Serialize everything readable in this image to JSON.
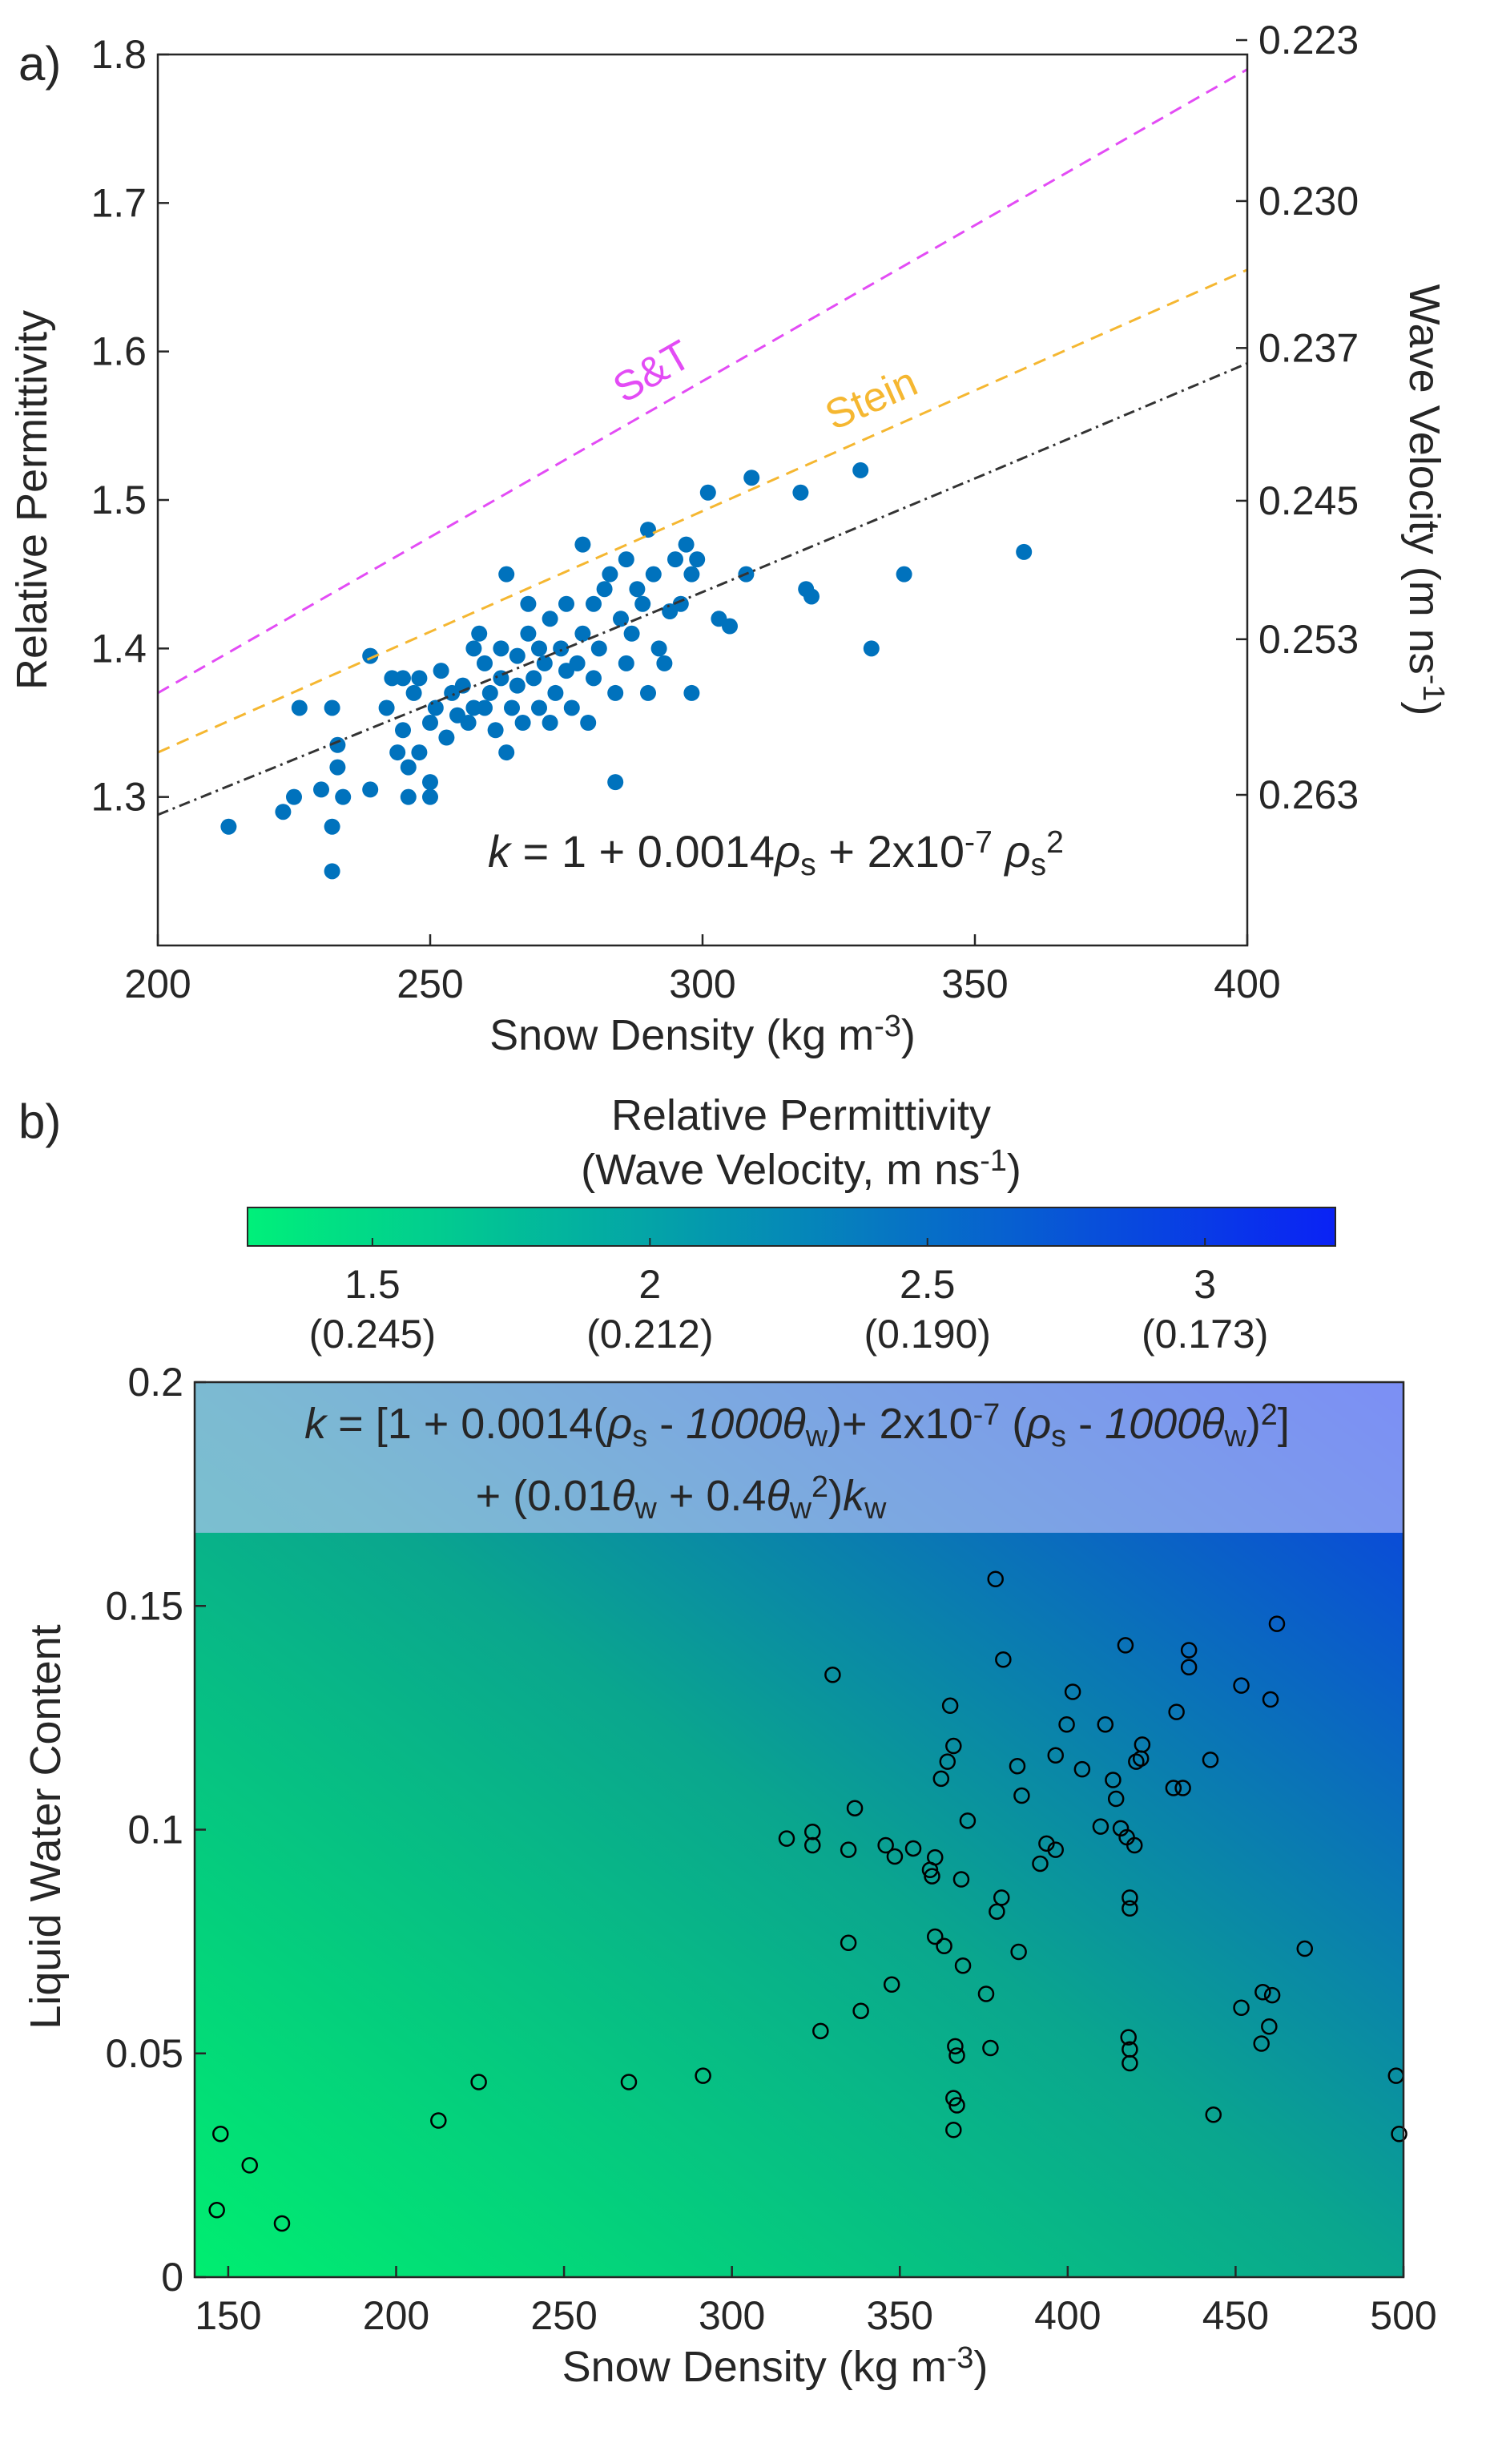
{
  "chart_data": [
    {
      "type": "scatter",
      "panel_label": "a)",
      "xlabel": [
        {
          "text": "Snow Density (kg m"
        },
        {
          "text": "-3",
          "style": "sup"
        },
        {
          "text": ")"
        }
      ],
      "ylabel": [
        {
          "text": "Relative Permittivity"
        }
      ],
      "y2label": [
        {
          "text": "Wave Velocity (m ns"
        },
        {
          "text": "-1",
          "style": "sup"
        },
        {
          "text": ")"
        }
      ],
      "xlim": [
        200,
        400
      ],
      "xticks": [
        200,
        250,
        300,
        350,
        400
      ],
      "ylim": [
        1.2,
        1.8
      ],
      "yticks": [
        1.3,
        1.4,
        1.5,
        1.6,
        1.7,
        1.8
      ],
      "y2scale": "inverse-square",
      "y2lim": [
        0.2739,
        0.2236
      ],
      "y2ticks": [
        {
          "value": 0.223,
          "label": "0.223"
        },
        {
          "value": 0.23,
          "label": "0.230"
        },
        {
          "value": 0.237,
          "label": "0.237"
        },
        {
          "value": 0.245,
          "label": "0.245"
        },
        {
          "value": 0.253,
          "label": "0.253"
        },
        {
          "value": 0.263,
          "label": "0.263"
        }
      ],
      "series": [
        {
          "type": "scatter",
          "color": "#0072bd",
          "x": [
            213,
            223,
            225,
            226,
            230,
            232,
            232,
            232,
            233,
            233,
            234,
            239,
            239,
            242,
            243,
            244,
            245,
            245,
            246,
            246,
            247,
            248,
            248,
            250,
            250,
            250,
            251,
            252,
            253,
            254,
            255,
            256,
            257,
            258,
            258,
            259,
            260,
            260,
            261,
            262,
            263,
            263,
            264,
            264,
            265,
            266,
            266,
            267,
            268,
            268,
            269,
            270,
            270,
            271,
            272,
            272,
            273,
            274,
            275,
            275,
            276,
            277,
            278,
            278,
            279,
            280,
            280,
            281,
            282,
            283,
            284,
            284,
            285,
            286,
            286,
            287,
            288,
            289,
            290,
            290,
            291,
            292,
            293,
            294,
            295,
            296,
            297,
            298,
            298,
            299,
            301,
            303,
            305,
            308,
            309,
            318,
            319,
            320,
            329,
            331,
            337,
            359
          ],
          "values": [
            1.28,
            1.29,
            1.3,
            1.36,
            1.305,
            1.25,
            1.28,
            1.36,
            1.335,
            1.32,
            1.3,
            1.395,
            1.305,
            1.36,
            1.38,
            1.33,
            1.345,
            1.38,
            1.3,
            1.32,
            1.37,
            1.33,
            1.38,
            1.35,
            1.31,
            1.3,
            1.36,
            1.385,
            1.34,
            1.37,
            1.355,
            1.375,
            1.35,
            1.36,
            1.4,
            1.41,
            1.36,
            1.39,
            1.37,
            1.345,
            1.38,
            1.4,
            1.45,
            1.33,
            1.36,
            1.395,
            1.375,
            1.35,
            1.41,
            1.43,
            1.38,
            1.36,
            1.4,
            1.39,
            1.42,
            1.35,
            1.37,
            1.4,
            1.385,
            1.43,
            1.36,
            1.39,
            1.47,
            1.41,
            1.35,
            1.38,
            1.43,
            1.4,
            1.44,
            1.45,
            1.37,
            1.31,
            1.42,
            1.39,
            1.46,
            1.41,
            1.44,
            1.43,
            1.48,
            1.37,
            1.45,
            1.4,
            1.39,
            1.425,
            1.46,
            1.43,
            1.47,
            1.45,
            1.37,
            1.46,
            1.505,
            1.42,
            1.415,
            1.45,
            1.515,
            1.505,
            1.44,
            1.435,
            1.52,
            1.4,
            1.45,
            1.465
          ]
        },
        {
          "type": "line",
          "name": "S&T",
          "color": "#e34cf5",
          "dash": "dashed",
          "x": [
            200,
            400
          ],
          "values": [
            1.37,
            1.79
          ]
        },
        {
          "type": "line",
          "name": "Stein",
          "color": "#f5b731",
          "dash": "dashed",
          "x": [
            200,
            400
          ],
          "values": [
            1.33,
            1.655
          ]
        },
        {
          "type": "line",
          "color": "#333333",
          "dash": "dashdot",
          "x": [
            200,
            250,
            300,
            350,
            400
          ],
          "values": [
            1.288,
            1.3625,
            1.438,
            1.5145,
            1.592
          ]
        }
      ],
      "annotations": [
        {
          "parts": [
            {
              "text": "k",
              "style": "italic"
            },
            {
              "text": " = 1 + 0.0014"
            },
            {
              "text": "ρ",
              "style": "italic"
            },
            {
              "text": "s",
              "style": "sub"
            },
            {
              "text": " + 2x10"
            },
            {
              "text": "-7",
              "style": "sup"
            },
            {
              "text": " ρ",
              "style": "italic"
            },
            {
              "text": "s",
              "style": "sub"
            },
            {
              "text": "2",
              "style": "sup"
            }
          ]
        }
      ]
    },
    {
      "type": "scatter",
      "panel_label": "b)",
      "xlabel": [
        {
          "text": "Snow Density (kg m"
        },
        {
          "text": "-3",
          "style": "sup"
        },
        {
          "text": ")"
        }
      ],
      "ylabel": [
        {
          "text": "Liquid Water Content"
        }
      ],
      "xlim": [
        140,
        500
      ],
      "xticks": [
        150,
        200,
        250,
        300,
        350,
        400,
        450,
        500
      ],
      "ylim": [
        0,
        0.2
      ],
      "yticks": [
        0,
        0.05,
        0.1,
        0.15,
        0.2
      ],
      "colorbar": {
        "label": [
          [
            {
              "text": "Relative Permittivity"
            }
          ],
          [
            {
              "text": "(Wave Velocity, m ns"
            },
            {
              "text": "-1",
              "style": "sup"
            },
            {
              "text": ")"
            }
          ]
        ],
        "lim": [
          1.275,
          3.235
        ],
        "ticks": [
          1.5,
          2,
          2.5,
          3
        ],
        "tick_sublabels": [
          "(0.245)",
          "(0.212)",
          "(0.190)",
          "(0.173)"
        ],
        "colors": [
          "#00f07a",
          "#0a22f5"
        ]
      },
      "series": [
        {
          "type": "scatter",
          "marker": "open-circle",
          "color": "#000000",
          "x": [
            147.7,
            146.6,
            156.4,
            166,
            212.6,
            224.6,
            269.3,
            291.4,
            316.3,
            324,
            324,
            326.4,
            330,
            334.7,
            334.7,
            336.6,
            338.4,
            345.8,
            347.6,
            348.5,
            354,
            359,
            359.6,
            360.5,
            360.5,
            362.3,
            363.2,
            364.2,
            365,
            366,
            366,
            366,
            366.5,
            367,
            367,
            368.3,
            368.8,
            370.2,
            375.7,
            377,
            378.5,
            378.9,
            380.3,
            380.8,
            385,
            386.3,
            385.4,
            391.8,
            393.7,
            396.4,
            396.4,
            399.7,
            401.5,
            404.3,
            409.8,
            411.2,
            413.5,
            414.4,
            415.8,
            417.2,
            417.6,
            418.5,
            418.5,
            418.1,
            418.5,
            418.5,
            419.9,
            420.4,
            422.2,
            421.8,
            432.4,
            431.5,
            434.3,
            436.1,
            436.1,
            442.5,
            443.4,
            451.7,
            451.7,
            457.7,
            458.1,
            460.9,
            460,
            460.4,
            462.3,
            470.6,
            497.8,
            498.7
          ],
          "values": [
            0.032,
            0.015,
            0.025,
            0.012,
            0.035,
            0.0436,
            0.0436,
            0.045,
            0.098,
            0.0965,
            0.0995,
            0.055,
            0.1346,
            0.0955,
            0.0747,
            0.1048,
            0.0595,
            0.0965,
            0.0654,
            0.094,
            0.0958,
            0.091,
            0.0896,
            0.0761,
            0.0938,
            0.1114,
            0.074,
            0.1152,
            0.1277,
            0.1187,
            0.04,
            0.0329,
            0.0516,
            0.0384,
            0.0495,
            0.0889,
            0.0696,
            0.102,
            0.0633,
            0.0512,
            0.156,
            0.0817,
            0.0848,
            0.138,
            0.1142,
            0.1076,
            0.0727,
            0.0924,
            0.0969,
            0.0955,
            0.1166,
            0.1235,
            0.1308,
            0.1135,
            0.1007,
            0.1235,
            0.1111,
            0.1069,
            0.1003,
            0.1412,
            0.0983,
            0.0848,
            0.0824,
            0.0536,
            0.0509,
            0.0478,
            0.0965,
            0.1152,
            0.119,
            0.1159,
            0.1263,
            0.1093,
            0.1093,
            0.1401,
            0.1363,
            0.1156,
            0.0363,
            0.1322,
            0.0602,
            0.0522,
            0.0637,
            0.063,
            0.056,
            0.1291,
            0.146,
            0.0734,
            0.045,
            0.032
          ]
        }
      ],
      "annotations": [
        {
          "parts": [
            {
              "text": "k",
              "style": "italic"
            },
            {
              "text": " = [1 + 0.0014("
            },
            {
              "text": "ρ",
              "style": "italic"
            },
            {
              "text": "s",
              "style": "sub"
            },
            {
              "text": " - "
            },
            {
              "text": "1000θ",
              "style": "italic"
            },
            {
              "text": "w",
              "style": "sub"
            },
            {
              "text": ")+ 2x10"
            },
            {
              "text": "-7",
              "style": "sup"
            },
            {
              "text": " ("
            },
            {
              "text": "ρ",
              "style": "italic"
            },
            {
              "text": "s",
              "style": "sub"
            },
            {
              "text": " - "
            },
            {
              "text": "1000θ",
              "style": "italic"
            },
            {
              "text": "w",
              "style": "sub"
            },
            {
              "text": ")"
            },
            {
              "text": "2",
              "style": "sup"
            },
            {
              "text": "]"
            }
          ]
        },
        {
          "parts": [
            {
              "text": "+ (0.01"
            },
            {
              "text": "θ",
              "style": "italic"
            },
            {
              "text": "w",
              "style": "sub"
            },
            {
              "text": " + 0.4"
            },
            {
              "text": "θ",
              "style": "italic"
            },
            {
              "text": "w",
              "style": "sub"
            },
            {
              "text": "2",
              "style": "sup"
            },
            {
              "text": ")"
            },
            {
              "text": "k",
              "style": "italic"
            },
            {
              "text": "w",
              "style": "sub"
            }
          ]
        }
      ]
    }
  ]
}
